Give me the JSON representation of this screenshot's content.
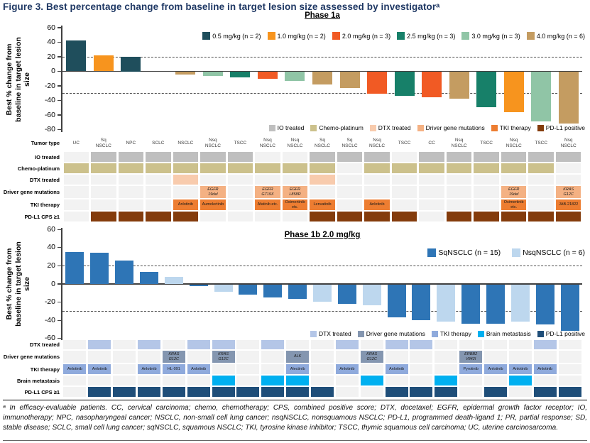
{
  "title": "Figure 3. Best percentage change from baseline in target lesion size assessed by investigatorᵃ",
  "footnote": "ᵃ In efficacy-evaluable patients. CC, cervical carcinoma; chemo, chemotherapy; CPS, combined positive score; DTX, docetaxel; EGFR, epidermal growth factor receptor; IO, immunotherapy; NPC, nasopharyngeal cancer; NSCLC, non-small cell lung cancer; nsqNSCLC, nonsquamous NSCLC; PD-L1, programmed death-ligand 1; PR, partial response; SD, stable disease; SCLC, small cell lung cancer; sqNSCLC, squamous NSCLC; TKI, tyrosine kinase inhibitor; TSCC, thymic squamous cell carcinoma; UC, uterine carcinosarcoma.",
  "chart_data": [
    {
      "type": "bar",
      "title": "Phase 1a",
      "ylabel": "Best % change from\nbaseline in target lesion\nsize",
      "ylim": [
        -80,
        60
      ],
      "yticks": [
        60,
        40,
        20,
        0,
        -20,
        -40,
        -60,
        -80
      ],
      "reference_lines": [
        20,
        -30
      ],
      "grid": false,
      "legend_position": "top-right-inside",
      "legend": [
        {
          "key": "0.5",
          "label": "0.5 mg/kg (n = 2)",
          "color": "#1F4E5C"
        },
        {
          "key": "1.0",
          "label": "1.0 mg/kg (n = 2)",
          "color": "#F7941E"
        },
        {
          "key": "2.0",
          "label": "2.0 mg/kg (n = 3)",
          "color": "#F15A24"
        },
        {
          "key": "2.5",
          "label": "2.5 mg/kg (n = 3)",
          "color": "#178069"
        },
        {
          "key": "3.0",
          "label": "3.0 mg/kg (n = 3)",
          "color": "#90C5A6"
        },
        {
          "key": "4.0",
          "label": "4.0 mg/kg (n = 6)",
          "color": "#C49C61"
        }
      ],
      "bars": [
        {
          "value": 42,
          "key": "0.5"
        },
        {
          "value": 22,
          "key": "1.0"
        },
        {
          "value": 20,
          "key": "0.5"
        },
        {
          "value": 0,
          "key": "4.0"
        },
        {
          "value": -4,
          "key": "4.0"
        },
        {
          "value": -5,
          "key": "3.0"
        },
        {
          "value": -7,
          "key": "2.5"
        },
        {
          "value": -9,
          "key": "2.0"
        },
        {
          "value": -12,
          "key": "3.0"
        },
        {
          "value": -17,
          "key": "4.0"
        },
        {
          "value": -22,
          "key": "4.0"
        },
        {
          "value": -30,
          "key": "2.0"
        },
        {
          "value": -33,
          "key": "2.5"
        },
        {
          "value": -35,
          "key": "2.0"
        },
        {
          "value": -37,
          "key": "4.0"
        },
        {
          "value": -48,
          "key": "2.5"
        },
        {
          "value": -55,
          "key": "1.0"
        },
        {
          "value": -68,
          "key": "3.0"
        },
        {
          "value": -71,
          "key": "4.0"
        }
      ],
      "annotation_legend": [
        {
          "label": "IO treated",
          "color": "#BFBFBF"
        },
        {
          "label": "Chemo-platinum",
          "color": "#CCC18C"
        },
        {
          "label": "DTX treated",
          "color": "#F8CBAD"
        },
        {
          "label": "Driver gene mutations",
          "color": "#F4B183"
        },
        {
          "label": "TKI therapy",
          "color": "#ED7D31"
        },
        {
          "label": "PD-L1 positive",
          "color": "#843C0C"
        }
      ],
      "table": {
        "rows": [
          {
            "label": "Tumor type",
            "type": "text",
            "values": [
              "UC",
              "Sq|NSCLC",
              "NPC",
              "SCLC",
              "NSCLC",
              "Nsq|NSCLC",
              "TSCC",
              "Nsq|NSCLC",
              "Nsq|NSCLC",
              "Sq|NSCLC",
              "Sq|NSCLC",
              "Nsq|NSCLC",
              "TSCC",
              "CC",
              "Nsq|NSCLC",
              "TSCC",
              "Nsq|NSCLC",
              "TSCC",
              "Nsq|NSCLC"
            ]
          },
          {
            "label": "IO treated",
            "type": "flag",
            "color": "#BFBFBF",
            "values": [
              0,
              1,
              1,
              1,
              1,
              1,
              1,
              0,
              0,
              1,
              1,
              1,
              0,
              1,
              1,
              1,
              1,
              1,
              1
            ]
          },
          {
            "label": "Chemo-platinum",
            "type": "flag",
            "color": "#CCC18C",
            "values": [
              1,
              1,
              1,
              1,
              1,
              1,
              1,
              1,
              1,
              1,
              0,
              1,
              1,
              1,
              1,
              1,
              1,
              1,
              0
            ]
          },
          {
            "label": "DTX treated",
            "type": "flag",
            "color": "#F8CBAD",
            "values": [
              0,
              0,
              0,
              0,
              1,
              0,
              0,
              0,
              0,
              1,
              0,
              0,
              0,
              0,
              0,
              0,
              0,
              0,
              0
            ]
          },
          {
            "label": "Driver gene mutations",
            "type": "gene",
            "color": "#F4B183",
            "values": [
              null,
              null,
              null,
              null,
              null,
              "EGFR|19del",
              null,
              "EGFR|G719X",
              "EGFR|L858R",
              null,
              null,
              null,
              null,
              null,
              null,
              null,
              "EGFR|19del",
              null,
              "KRAS|G12C"
            ]
          },
          {
            "label": "TKI therapy",
            "type": "drug",
            "color": "#ED7D31",
            "values": [
              null,
              null,
              null,
              null,
              "Anlotinib",
              "Aumolertinib",
              null,
              "Afatinib etc.",
              "Osimertinib|etc.",
              "Lenvatinib",
              null,
              "Anlotinib",
              null,
              null,
              null,
              null,
              "Osimertinib|etc.",
              null,
              "JAB-21822"
            ]
          },
          {
            "label": "PD-L1 CPS ≥1",
            "type": "flag",
            "color": "#843C0C",
            "values": [
              0,
              1,
              1,
              1,
              1,
              0,
              0,
              0,
              0,
              1,
              1,
              1,
              1,
              0,
              1,
              1,
              1,
              1,
              1
            ]
          }
        ]
      }
    },
    {
      "type": "bar",
      "title": "Phase 1b 2.0 mg/kg",
      "ylabel": "Best % change from\nbaseline in target lesion\nsize",
      "ylim": [
        -60,
        60
      ],
      "yticks": [
        60,
        40,
        20,
        0,
        -20,
        -40,
        -60
      ],
      "reference_lines": [
        20,
        -30
      ],
      "grid": false,
      "legend_position": "top-right-inside",
      "legend": [
        {
          "key": "sq",
          "label": "SqNSCLC (n = 15)",
          "color": "#2E75B6"
        },
        {
          "key": "nsq",
          "label": "NsqNSCLC (n = 6)",
          "color": "#BDD7EE"
        }
      ],
      "bars": [
        {
          "value": 35,
          "key": "sq"
        },
        {
          "value": 34,
          "key": "sq"
        },
        {
          "value": 26,
          "key": "sq"
        },
        {
          "value": 13,
          "key": "sq"
        },
        {
          "value": 8,
          "key": "nsq"
        },
        {
          "value": -2,
          "key": "sq"
        },
        {
          "value": -8,
          "key": "nsq"
        },
        {
          "value": -11,
          "key": "sq"
        },
        {
          "value": -14,
          "key": "sq"
        },
        {
          "value": -16,
          "key": "sq"
        },
        {
          "value": -19,
          "key": "nsq"
        },
        {
          "value": -21,
          "key": "sq"
        },
        {
          "value": -23,
          "key": "nsq"
        },
        {
          "value": -36,
          "key": "sq"
        },
        {
          "value": -39,
          "key": "sq"
        },
        {
          "value": -41,
          "key": "nsq"
        },
        {
          "value": -43,
          "key": "sq"
        },
        {
          "value": -43,
          "key": "sq"
        },
        {
          "value": -41,
          "key": "nsq"
        },
        {
          "value": -44,
          "key": "sq"
        },
        {
          "value": -51,
          "key": "sq"
        }
      ],
      "annotation_legend": [
        {
          "label": "DTX treated",
          "color": "#B4C6E7"
        },
        {
          "label": "Driver gene mutations",
          "color": "#8496B0"
        },
        {
          "label": "TKI therapy",
          "color": "#8FAADC"
        },
        {
          "label": "Brain metastasis",
          "color": "#00B0F0"
        },
        {
          "label": "PD-L1 positive",
          "color": "#1F4E79"
        }
      ],
      "table": {
        "rows": [
          {
            "label": "DTX treated",
            "type": "flag",
            "color": "#B4C6E7",
            "values": [
              0,
              1,
              0,
              1,
              0,
              1,
              1,
              0,
              1,
              0,
              0,
              1,
              0,
              1,
              1,
              0,
              0,
              0,
              0,
              1,
              0
            ]
          },
          {
            "label": "Driver gene mutations",
            "type": "gene",
            "color": "#8496B0",
            "values": [
              null,
              null,
              null,
              null,
              "KRAS|G12C",
              null,
              "KRAS|G12C",
              null,
              null,
              "ALK",
              null,
              null,
              "KRAS|G12C",
              null,
              null,
              null,
              "ERBB2|V842I",
              null,
              null,
              null,
              null
            ]
          },
          {
            "label": "TKI therapy",
            "type": "drug",
            "color": "#8FAADC",
            "values": [
              "Anlotinib",
              "Anlotinib",
              null,
              "Anlotinib",
              "HL-091",
              "Anlotinib",
              null,
              null,
              null,
              "Alectinib",
              null,
              "Anlotinib",
              null,
              "Anlotinib",
              null,
              null,
              "Pyrotinib",
              "Anlotinib",
              "Anlotinib",
              "Anlotinib",
              null
            ]
          },
          {
            "label": "Brain metastasis",
            "type": "flag",
            "color": "#00B0F0",
            "values": [
              0,
              0,
              0,
              0,
              0,
              0,
              1,
              0,
              1,
              1,
              0,
              0,
              1,
              0,
              0,
              1,
              0,
              0,
              1,
              0,
              0
            ]
          },
          {
            "label": "PD-L1 CPS ≥1",
            "type": "flag",
            "color": "#1F4E79",
            "values": [
              0,
              1,
              1,
              1,
              1,
              1,
              1,
              1,
              1,
              1,
              1,
              0,
              0,
              1,
              1,
              1,
              0,
              1,
              0,
              1,
              1
            ]
          }
        ]
      }
    }
  ]
}
